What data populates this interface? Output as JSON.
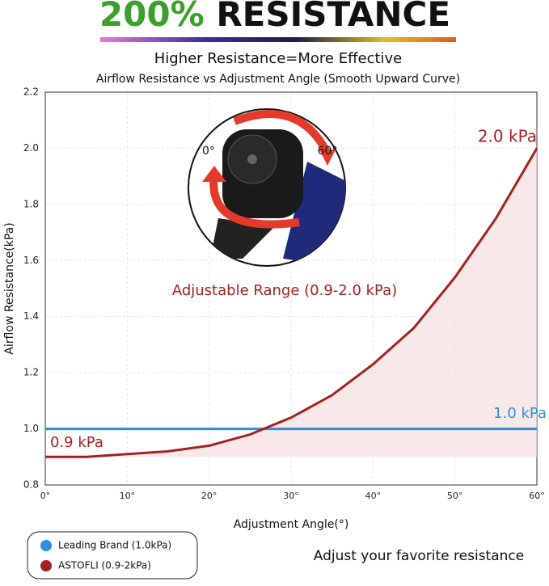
{
  "chart_data": {
    "type": "line",
    "title": {
      "highlight": "200%",
      "rest": "RESISTANCE"
    },
    "subtitle": "Higher Resistance=More Effective",
    "chart_title": "Airflow Resistance vs Adjustment Angle (Smooth Upward Curve)",
    "x_label": "Adjustment Angle(°)",
    "y_label": "Airflow Resistance(kPa)",
    "x": [
      0,
      5,
      10,
      15,
      20,
      25,
      30,
      35,
      40,
      45,
      50,
      55,
      60
    ],
    "series": [
      {
        "name": "Leading Brand (1.0kPa)",
        "color": "#2e8fe0",
        "values": [
          1,
          1,
          1,
          1,
          1,
          1,
          1,
          1,
          1,
          1,
          1,
          1,
          1
        ]
      },
      {
        "name": "ASTOFLI (0.9-2kPa)",
        "color": "#a32121",
        "values": [
          0.9,
          0.9,
          0.91,
          0.92,
          0.94,
          0.98,
          1.04,
          1.12,
          1.23,
          1.36,
          1.54,
          1.75,
          2.0
        ]
      }
    ],
    "area_color": "#f7dede",
    "xlim": [
      0,
      60
    ],
    "xticks": [
      {
        "value": 0,
        "label": "0°"
      },
      {
        "value": 10,
        "label": "10°"
      },
      {
        "value": 20,
        "label": "20°"
      },
      {
        "value": 30,
        "label": "30°"
      },
      {
        "value": 40,
        "label": "40°"
      },
      {
        "value": 50,
        "label": "50°"
      },
      {
        "value": 60,
        "label": "60°"
      }
    ],
    "ylim": [
      0.8,
      2.2
    ],
    "yticks": [
      0.8,
      {
        "value": 1,
        "label": "1.0"
      },
      1.2,
      1.4,
      1.6,
      1.8,
      {
        "value": 2,
        "label": "2.0"
      },
      2.2
    ],
    "grid": true,
    "annotations": [
      "2.0 kPa",
      "1.0 kPa",
      "0.9 kPa",
      "Adjustable Range (0.9-2.0 kPa)",
      "0°",
      "60°"
    ],
    "footer": "Adjust your favorite resistance"
  }
}
